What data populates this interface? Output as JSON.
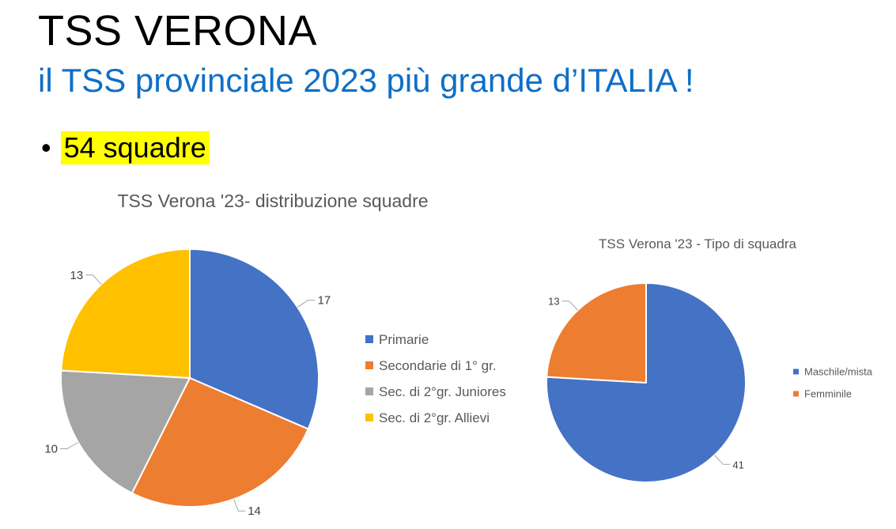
{
  "header": {
    "title": "TSS VERONA",
    "subtitle": "il TSS provinciale 2023 più grande d’ITALIA !"
  },
  "bullet": {
    "symbol": "•",
    "text": "54 squadre",
    "highlight": "#ffff00"
  },
  "chart_data": [
    {
      "type": "pie",
      "title": "TSS Verona '23- distribuzione squadre",
      "legend_position": "right",
      "categories": [
        "Primarie",
        "Secondarie di 1° gr.",
        "Sec. di 2°gr. Juniores",
        "Sec. di 2°gr. Allievi"
      ],
      "values": [
        17,
        14,
        10,
        13
      ],
      "colors": [
        "#4472c4",
        "#ed7d31",
        "#a5a5a5",
        "#ffc000"
      ]
    },
    {
      "type": "pie",
      "title": "TSS Verona '23 - Tipo di squadra",
      "legend_position": "right",
      "categories": [
        "Maschile/mista",
        "Femminile"
      ],
      "values": [
        41,
        13
      ],
      "colors": [
        "#4472c4",
        "#ed7d31"
      ]
    }
  ]
}
